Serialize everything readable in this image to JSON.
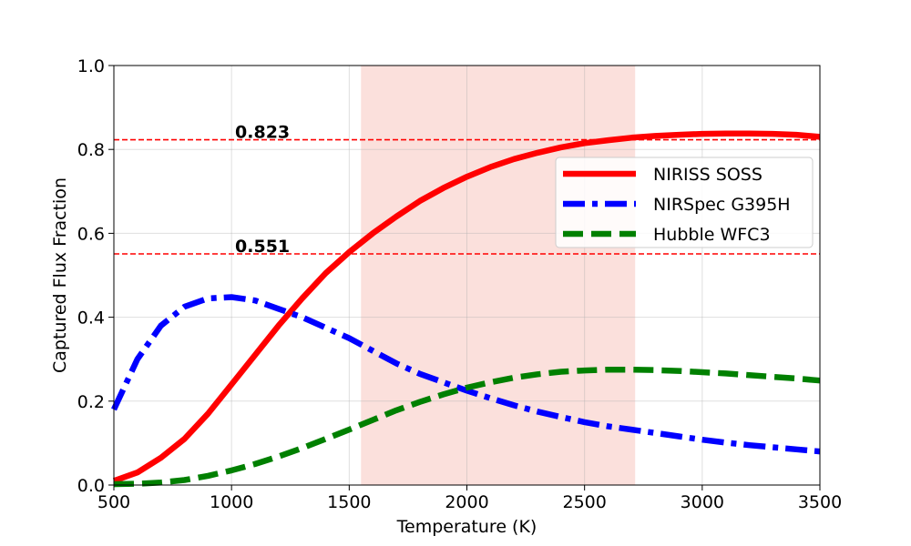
{
  "chart_data": {
    "type": "line",
    "title": "",
    "xlabel": "Temperature (K)",
    "ylabel": "Captured Flux Fraction",
    "xlim": [
      500,
      3500
    ],
    "ylim": [
      0.0,
      1.0
    ],
    "xticks": [
      500,
      1000,
      1500,
      2000,
      2500,
      3000,
      3500
    ],
    "xtick_labels": [
      "500",
      "1000",
      "1500",
      "2000",
      "2500",
      "3000",
      "3500"
    ],
    "yticks": [
      0.0,
      0.2,
      0.4,
      0.6,
      0.8,
      1.0
    ],
    "ytick_labels": [
      "0.0",
      "0.2",
      "0.4",
      "0.6",
      "0.8",
      "1.0"
    ],
    "grid": true,
    "legend_position": "center-right",
    "shaded_region": {
      "x_start": 1550,
      "x_end": 2715,
      "color": "#f4a59a"
    },
    "reference_lines": [
      {
        "y": 0.823,
        "label": "0.823",
        "color": "#ff0000",
        "style": "dashed"
      },
      {
        "y": 0.551,
        "label": "0.551",
        "color": "#ff0000",
        "style": "dashed"
      }
    ],
    "series": [
      {
        "name": "NIRISS SOSS",
        "color": "#ff0000",
        "style": "solid",
        "x": [
          500,
          600,
          700,
          800,
          900,
          1000,
          1100,
          1200,
          1300,
          1400,
          1500,
          1600,
          1700,
          1800,
          1900,
          2000,
          2100,
          2200,
          2300,
          2400,
          2500,
          2600,
          2700,
          2800,
          2900,
          3000,
          3100,
          3200,
          3300,
          3400,
          3500
        ],
        "y": [
          0.01,
          0.03,
          0.065,
          0.11,
          0.17,
          0.24,
          0.31,
          0.38,
          0.445,
          0.505,
          0.555,
          0.6,
          0.64,
          0.677,
          0.708,
          0.735,
          0.758,
          0.777,
          0.792,
          0.805,
          0.815,
          0.822,
          0.828,
          0.832,
          0.835,
          0.837,
          0.838,
          0.838,
          0.837,
          0.835,
          0.83
        ]
      },
      {
        "name": "NIRSpec G395H",
        "color": "#0000ff",
        "style": "dashdot",
        "x": [
          500,
          600,
          700,
          800,
          900,
          1000,
          1100,
          1200,
          1300,
          1400,
          1500,
          1600,
          1700,
          1800,
          1900,
          2000,
          2100,
          2200,
          2300,
          2400,
          2500,
          2600,
          2700,
          2800,
          2900,
          3000,
          3100,
          3200,
          3300,
          3400,
          3500
        ],
        "y": [
          0.18,
          0.3,
          0.38,
          0.425,
          0.445,
          0.448,
          0.44,
          0.42,
          0.4,
          0.375,
          0.35,
          0.32,
          0.29,
          0.265,
          0.245,
          0.225,
          0.207,
          0.19,
          0.175,
          0.162,
          0.15,
          0.14,
          0.132,
          0.124,
          0.116,
          0.108,
          0.101,
          0.095,
          0.09,
          0.085,
          0.08
        ]
      },
      {
        "name": "Hubble WFC3",
        "color": "#008000",
        "style": "dashed",
        "x": [
          500,
          600,
          700,
          800,
          900,
          1000,
          1100,
          1200,
          1300,
          1400,
          1500,
          1600,
          1700,
          1800,
          1900,
          2000,
          2100,
          2200,
          2300,
          2400,
          2500,
          2600,
          2700,
          2800,
          2900,
          3000,
          3100,
          3200,
          3300,
          3400,
          3500
        ],
        "y": [
          0.002,
          0.003,
          0.006,
          0.012,
          0.022,
          0.035,
          0.05,
          0.068,
          0.088,
          0.11,
          0.132,
          0.155,
          0.178,
          0.198,
          0.216,
          0.232,
          0.245,
          0.256,
          0.264,
          0.27,
          0.273,
          0.275,
          0.275,
          0.274,
          0.272,
          0.269,
          0.266,
          0.262,
          0.258,
          0.254,
          0.249
        ]
      }
    ]
  }
}
